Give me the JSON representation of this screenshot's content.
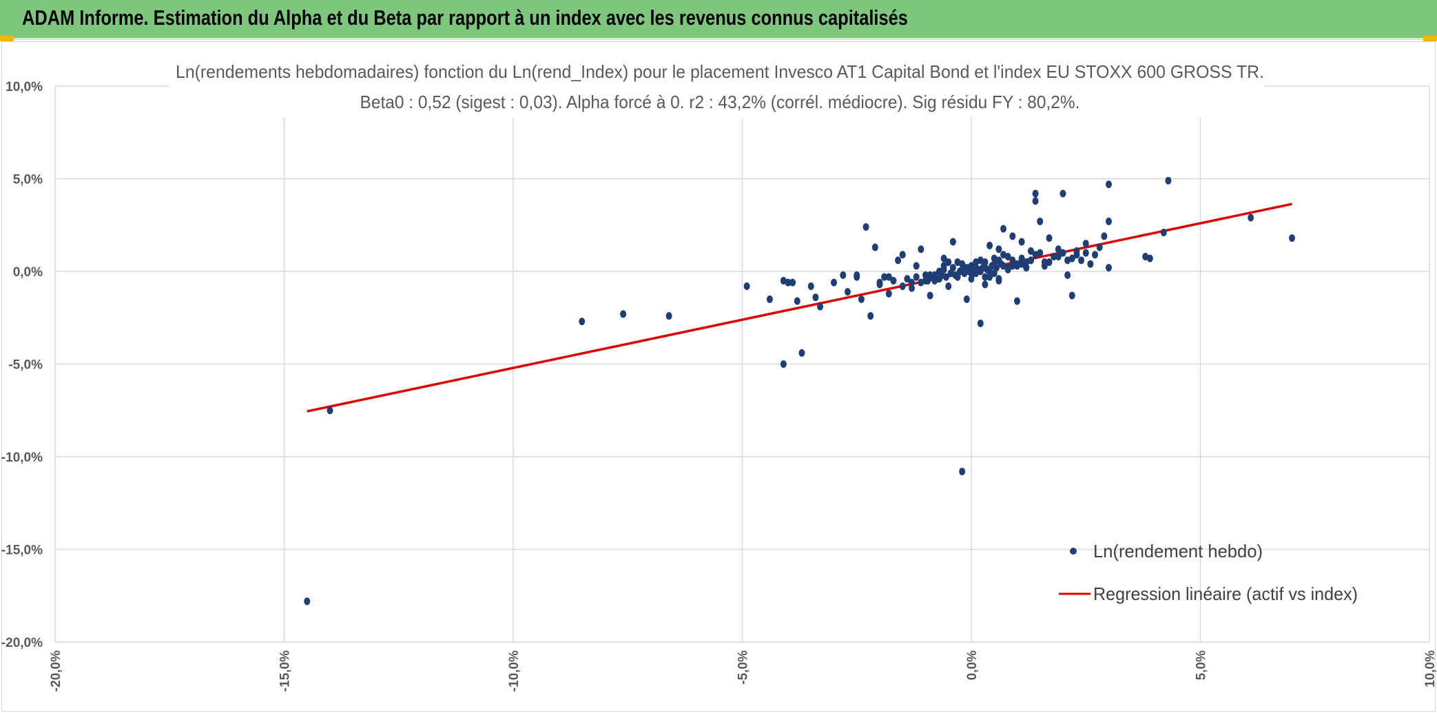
{
  "header": {
    "title": "ADAM Informe. Estimation du Alpha et du Beta par rapport à un index avec les revenus connus capitalisés"
  },
  "colors": {
    "header_bg": "#7dc77c",
    "points": "#1f3f74",
    "regression": "#e00000",
    "grid": "#d9d9d9",
    "accent": "#f2b705"
  },
  "chart_data": {
    "type": "scatter",
    "title": "Ln(rendements hebdomadaires) fonction du Ln(rend_Index) pour le placement Invesco AT1 Capital Bond  et l'index EU STOXX 600 GROSS TR.",
    "subtitle": "Beta0 : 0,52 (sigest : 0,03). Alpha forcé à 0. r2 : 43,2% (corrél. médiocre). Sig résidu FY : 80,2%.",
    "xlim": [
      -20,
      10
    ],
    "ylim": [
      -20,
      10
    ],
    "x_ticks": [
      "-20,0%",
      "-15,0%",
      "-10,0%",
      "-5,0%",
      "0,0%",
      "5,0%",
      "10,0%"
    ],
    "y_ticks": [
      "10,0%",
      "5,0%",
      "0,0%",
      "-5,0%",
      "-10,0%",
      "-15,0%",
      "-20,0%"
    ],
    "grid": true,
    "legend_position": "bottom-right",
    "series": [
      {
        "name": "Ln(rendement hebdo)",
        "kind": "scatter",
        "x": [
          -14.5,
          -14.0,
          -8.5,
          -7.6,
          -6.6,
          -4.9,
          -4.4,
          -4.1,
          -4.0,
          -3.9,
          -3.8,
          -4.1,
          -3.7,
          -3.5,
          -3.4,
          -3.3,
          -3.0,
          -2.8,
          -2.7,
          -2.5,
          -2.4,
          -2.3,
          -2.2,
          -2.1,
          -2.0,
          -1.9,
          -1.8,
          -1.7,
          -1.6,
          -1.5,
          -1.4,
          -1.3,
          -1.2,
          -1.1,
          -1.0,
          -0.9,
          -0.8,
          -0.7,
          -0.6,
          -0.5,
          -0.4,
          -0.3,
          -0.2,
          -0.1,
          0.0,
          0.1,
          0.2,
          0.3,
          0.4,
          0.5,
          0.6,
          0.7,
          0.8,
          0.9,
          1.0,
          1.1,
          1.2,
          1.3,
          1.4,
          1.5,
          1.6,
          1.7,
          1.8,
          1.9,
          2.0,
          2.1,
          2.2,
          2.3,
          2.4,
          2.5,
          2.6,
          2.7,
          2.8,
          3.0,
          3.0,
          3.0,
          3.8,
          3.9,
          4.2,
          4.3,
          6.1,
          7.0,
          1.4,
          1.4,
          2.0,
          2.9,
          -0.2,
          0.4,
          0.6,
          1.0,
          1.5,
          2.2,
          -1.2,
          -1.5,
          -0.5,
          -0.3,
          0.0,
          0.2,
          0.1,
          0.3,
          -0.8,
          -0.6,
          0.5,
          0.7,
          0.9,
          1.2,
          -1.0,
          -1.3,
          -0.4,
          0.8,
          1.1,
          1.3,
          1.6,
          -2.0,
          -2.5,
          -1.8,
          0.05,
          0.15,
          -0.05,
          0.25,
          0.35,
          0.45,
          0.55,
          0.65,
          -0.15,
          -0.25,
          -0.35,
          -0.45,
          -0.55,
          -0.65,
          -0.75,
          -0.85,
          -0.95,
          1.7,
          1.9,
          2.1,
          2.3,
          2.5,
          1.0,
          1.2,
          0.8,
          0.6,
          0.4,
          -0.7,
          -0.9,
          -1.1,
          0.3,
          0.5,
          0.7,
          0.9,
          1.1,
          1.3,
          -0.1,
          0.1,
          0.2,
          -0.2,
          0.0,
          0.0,
          0.3,
          -0.3,
          0.6,
          -0.6
        ],
        "y": [
          -17.8,
          -7.5,
          -2.7,
          -2.3,
          -2.4,
          -0.8,
          -1.5,
          -5.0,
          -0.6,
          -0.6,
          -1.6,
          -0.5,
          -4.4,
          -0.8,
          -1.4,
          -1.9,
          -0.6,
          -0.2,
          -1.1,
          -0.3,
          -1.5,
          2.4,
          -2.4,
          1.3,
          -0.7,
          -0.3,
          -1.2,
          -0.5,
          0.6,
          -0.8,
          -0.4,
          -0.9,
          -0.3,
          1.2,
          -0.2,
          -1.3,
          -0.5,
          0.0,
          0.3,
          -0.8,
          1.6,
          -0.2,
          0.4,
          -1.5,
          0.1,
          0.5,
          -2.8,
          0.2,
          1.4,
          0.7,
          -0.5,
          2.3,
          0.1,
          1.9,
          0.4,
          1.6,
          0.2,
          0.6,
          0.9,
          1.0,
          0.5,
          1.8,
          0.8,
          1.2,
          1.0,
          -0.2,
          0.7,
          1.1,
          0.6,
          1.5,
          0.4,
          0.9,
          1.3,
          4.7,
          2.7,
          0.2,
          0.8,
          0.7,
          2.1,
          4.9,
          2.9,
          1.8,
          4.2,
          3.8,
          4.2,
          1.9,
          -10.8,
          0.0,
          -0.4,
          -1.6,
          2.7,
          -1.3,
          0.3,
          0.9,
          0.5,
          -0.3,
          -0.1,
          0.0,
          0.2,
          -0.3,
          -0.2,
          0.1,
          -0.1,
          0.3,
          0.6,
          0.2,
          -0.5,
          -0.6,
          0.2,
          0.8,
          0.4,
          0.6,
          0.3,
          -0.6,
          -0.2,
          -0.3,
          -0.1,
          0.1,
          0.0,
          0.2,
          0.1,
          0.3,
          0.2,
          0.4,
          -0.1,
          0.0,
          -0.2,
          -0.1,
          -0.3,
          -0.2,
          -0.4,
          -0.3,
          -0.5,
          0.5,
          0.8,
          0.6,
          0.9,
          1.0,
          0.3,
          0.5,
          0.2,
          0.6,
          -0.3,
          -0.4,
          -0.2,
          -0.6,
          0.5,
          0.4,
          0.9,
          0.3,
          0.7,
          1.1,
          0.2,
          -0.1,
          0.6,
          0.1,
          -0.4,
          0.3,
          -0.7,
          0.5,
          1.2,
          0.7
        ]
      },
      {
        "name": "Regression linéaire (actif vs index)",
        "kind": "line",
        "x": [
          -14.5,
          7.0
        ],
        "y": [
          -7.55,
          3.64
        ]
      }
    ]
  }
}
